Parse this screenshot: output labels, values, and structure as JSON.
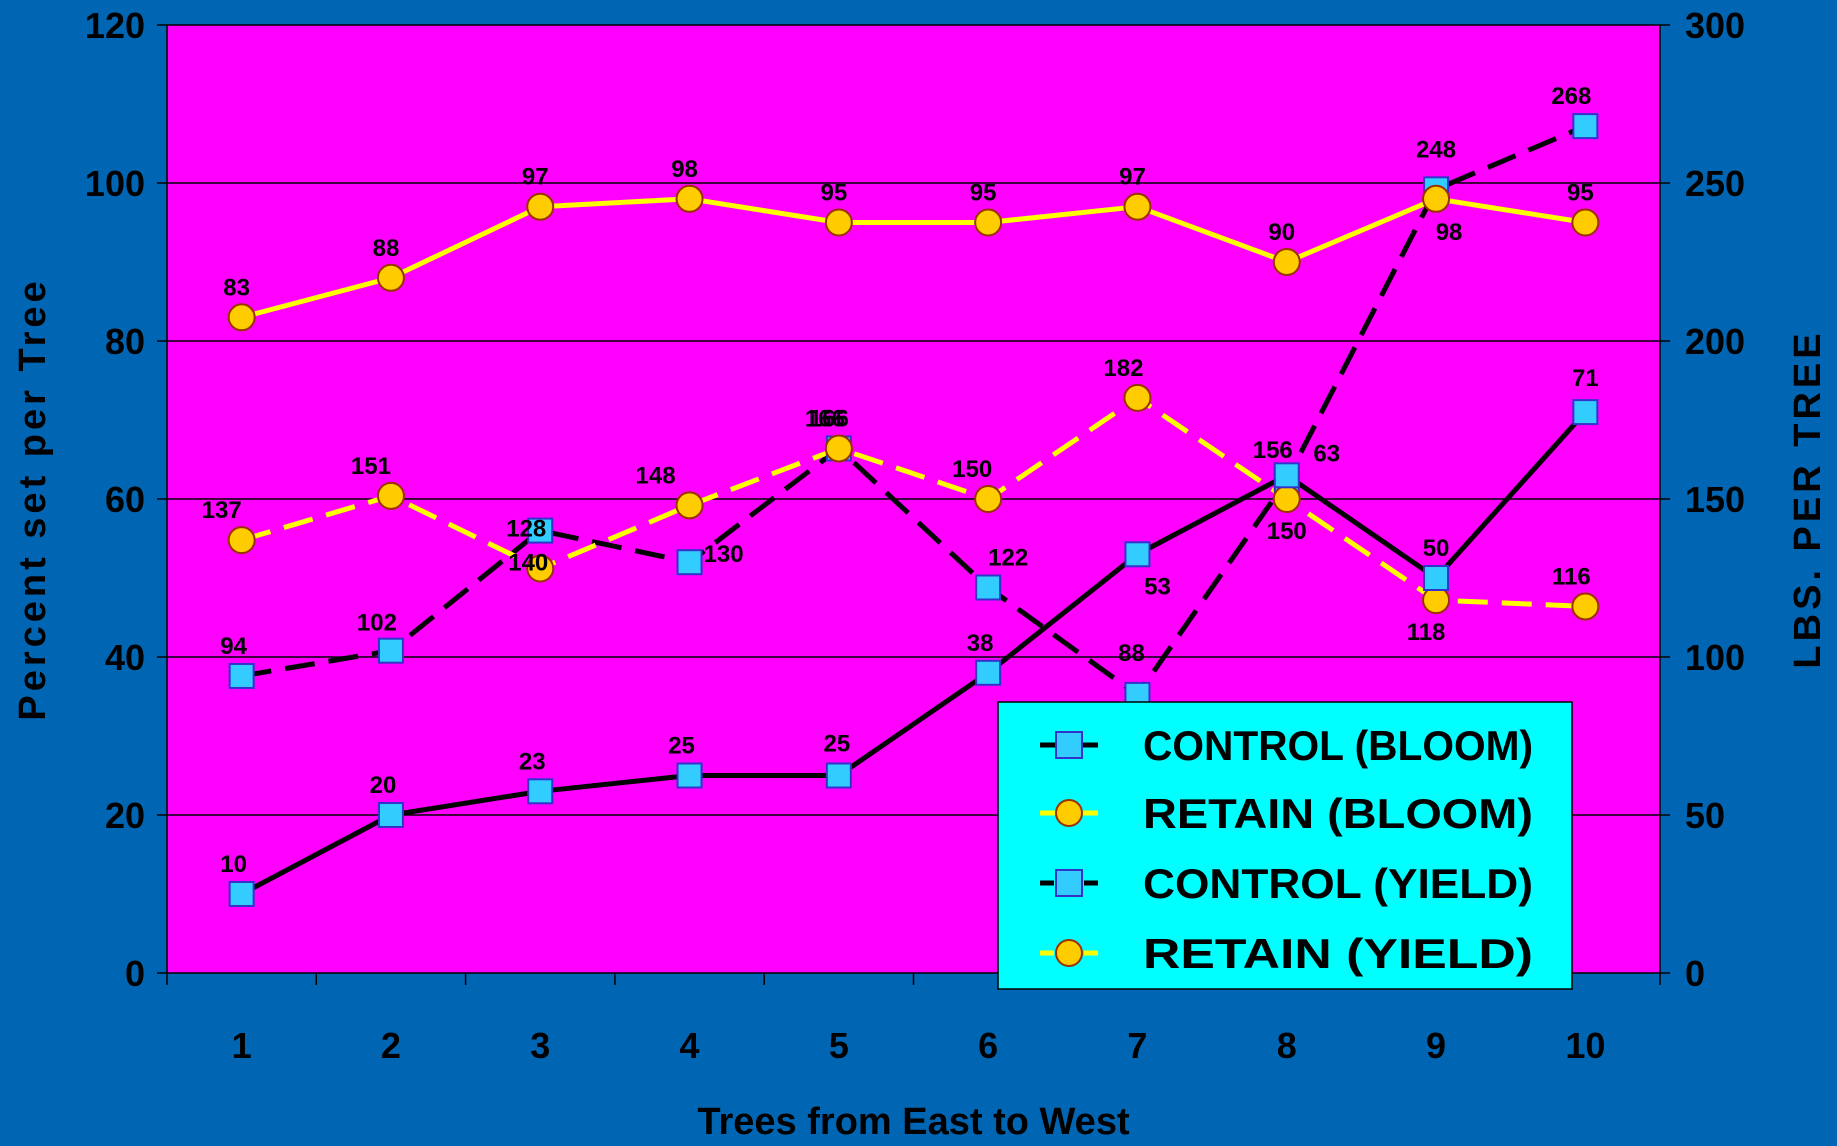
{
  "chart_data": {
    "type": "line",
    "xlabel": "Trees from East to West",
    "ylabel_left": "Percent set per Tree",
    "ylabel_right": "LBS. PER TREE",
    "x": [
      1,
      2,
      3,
      4,
      5,
      6,
      7,
      8,
      9,
      10
    ],
    "y_left_lim": [
      0,
      120
    ],
    "y_left_ticks": [
      0,
      20,
      40,
      60,
      80,
      100,
      120
    ],
    "y_right_lim": [
      0,
      300
    ],
    "y_right_ticks": [
      0,
      50,
      100,
      150,
      200,
      250,
      300
    ],
    "grid": "horizontal",
    "legend_position": "bottom-right",
    "colors": {
      "background": "#0066B3",
      "plot_area": "#FF00FF",
      "legend_box": "#00FFFF",
      "square_marker": "#33CCFF",
      "circle_marker": "#FFCC00",
      "black_line": "#000000",
      "yellow_line": "#FFFF00"
    },
    "series": [
      {
        "name": "CONTROL (BLOOM)",
        "axis": "left",
        "marker": "square",
        "line_style": "solid",
        "line_color": "#000000",
        "values": [
          10,
          20,
          23,
          25,
          25,
          38,
          53,
          63,
          50,
          71
        ],
        "labels": [
          "10",
          "20",
          "23",
          "25",
          "25",
          "38",
          "53",
          "63",
          "50",
          "71"
        ]
      },
      {
        "name": "RETAIN (BLOOM)",
        "axis": "left",
        "marker": "circle",
        "line_style": "solid",
        "line_color": "#FFFF00",
        "values": [
          83,
          88,
          97,
          98,
          95,
          95,
          97,
          90,
          98,
          95
        ],
        "labels": [
          "83",
          "88",
          "97",
          "98",
          "95",
          "95",
          "97",
          "90",
          "98",
          "95"
        ]
      },
      {
        "name": "CONTROL (YIELD)",
        "axis": "right",
        "marker": "square",
        "line_style": "dashed",
        "line_color": "#000000",
        "values": [
          94,
          102,
          140,
          130,
          166,
          122,
          88,
          156,
          248,
          268
        ],
        "labels": [
          "94",
          "102",
          "140",
          "130",
          "166",
          "122",
          "88",
          "156",
          "248",
          "268"
        ]
      },
      {
        "name": "RETAIN (YIELD)",
        "axis": "right",
        "marker": "circle",
        "line_style": "dashed",
        "line_color": "#FFFF00",
        "values": [
          137,
          151,
          128,
          148,
          166,
          150,
          182,
          150,
          118,
          116
        ],
        "labels": [
          "137",
          "151",
          "128",
          "148",
          "166",
          "150",
          "182",
          "150",
          "118",
          "116"
        ]
      }
    ]
  }
}
